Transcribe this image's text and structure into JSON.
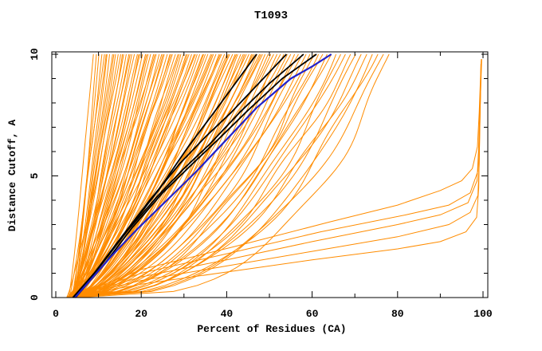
{
  "window": {
    "title": "T1093"
  },
  "chart_data": {
    "type": "line",
    "title": "T1093",
    "xlabel": "Percent of Residues (CA)",
    "ylabel": "Distance Cutoff, A",
    "xlim": [
      0,
      100
    ],
    "ylim": [
      0,
      10
    ],
    "x_major_ticks": [
      0,
      20,
      40,
      60,
      80,
      100
    ],
    "x_minor_step": 10,
    "y_major_ticks": [
      0,
      5,
      10
    ],
    "y_minor_step": 1,
    "grid": false,
    "legend": null,
    "colors": {
      "models": "#ff8c00",
      "highlighted": "#000000",
      "reference": "#2222cc",
      "axis": "#000000",
      "background": "#ffffff"
    },
    "series": {
      "reference_model_blue": {
        "color": "reference",
        "width": 2.2,
        "points": [
          [
            4.5,
            0
          ],
          [
            8,
            0.7
          ],
          [
            13,
            1.7
          ],
          [
            19,
            2.8
          ],
          [
            26,
            4.0
          ],
          [
            33,
            5.2
          ],
          [
            40,
            6.5
          ],
          [
            47,
            7.8
          ],
          [
            55,
            9.0
          ],
          [
            60,
            9.5
          ],
          [
            64.5,
            10
          ]
        ]
      },
      "highlighted_models_black": [
        {
          "width": 1.8,
          "points": [
            [
              4.0,
              0
            ],
            [
              9,
              1.0
            ],
            [
              16,
              2.6
            ],
            [
              24,
              4.4
            ],
            [
              31,
              6.2
            ],
            [
              37,
              7.6
            ],
            [
              42,
              8.8
            ],
            [
              47,
              10
            ]
          ]
        },
        {
          "width": 1.8,
          "points": [
            [
              4.2,
              0
            ],
            [
              9,
              1.0
            ],
            [
              15,
              2.4
            ],
            [
              22,
              4.0
            ],
            [
              29,
              5.5
            ],
            [
              35,
              6.6
            ],
            [
              41,
              7.6
            ],
            [
              48,
              8.9
            ],
            [
              54,
              10
            ]
          ]
        },
        {
          "width": 1.8,
          "points": [
            [
              4.4,
              0
            ],
            [
              10,
              1.2
            ],
            [
              17,
              2.8
            ],
            [
              24,
              4.2
            ],
            [
              30,
              5.3
            ],
            [
              36,
              6.3
            ],
            [
              43,
              7.6
            ],
            [
              50,
              8.8
            ],
            [
              58,
              10
            ]
          ]
        },
        {
          "width": 1.8,
          "points": [
            [
              4.6,
              0
            ],
            [
              11,
              1.3
            ],
            [
              18,
              2.9
            ],
            [
              25,
              4.3
            ],
            [
              32,
              5.5
            ],
            [
              38,
              6.5
            ],
            [
              45,
              7.7
            ],
            [
              53,
              9.0
            ],
            [
              61,
              10
            ]
          ]
        }
      ],
      "outlier_models_orange": [
        {
          "points": [
            [
              3.0,
              0
            ],
            [
              20,
              0.55
            ],
            [
              40,
              1.05
            ],
            [
              60,
              1.55
            ],
            [
              80,
              2.0
            ],
            [
              90,
              2.3
            ],
            [
              96,
              2.7
            ],
            [
              98.5,
              3.3
            ],
            [
              99.0,
              4.5
            ],
            [
              99.2,
              6.5
            ],
            [
              99.4,
              8.2
            ],
            [
              99.6,
              9.7
            ]
          ]
        },
        {
          "points": [
            [
              3.2,
              0
            ],
            [
              20,
              0.7
            ],
            [
              40,
              1.3
            ],
            [
              60,
              1.9
            ],
            [
              80,
              2.5
            ],
            [
              92,
              3.0
            ],
            [
              97,
              3.5
            ],
            [
              98.8,
              4.2
            ],
            [
              99.1,
              5.5
            ],
            [
              99.3,
              7.5
            ],
            [
              99.5,
              9.6
            ]
          ]
        },
        {
          "points": [
            [
              3.4,
              0
            ],
            [
              20,
              0.85
            ],
            [
              40,
              1.55
            ],
            [
              60,
              2.3
            ],
            [
              80,
              3.0
            ],
            [
              90,
              3.4
            ],
            [
              96.5,
              3.9
            ],
            [
              98.6,
              4.8
            ],
            [
              99.0,
              6.2
            ],
            [
              99.3,
              8.0
            ],
            [
              99.6,
              9.75
            ]
          ]
        },
        {
          "points": [
            [
              3.6,
              0
            ],
            [
              20,
              1.0
            ],
            [
              40,
              1.8
            ],
            [
              62,
              2.7
            ],
            [
              82,
              3.4
            ],
            [
              92,
              3.8
            ],
            [
              97,
              4.3
            ],
            [
              98.8,
              5.2
            ],
            [
              99.2,
              7.0
            ],
            [
              99.5,
              8.8
            ],
            [
              99.7,
              9.8
            ]
          ]
        },
        {
          "points": [
            [
              3.8,
              0
            ],
            [
              20,
              1.15
            ],
            [
              42,
              2.1
            ],
            [
              64,
              3.1
            ],
            [
              80,
              3.8
            ],
            [
              90,
              4.4
            ],
            [
              95,
              4.8
            ],
            [
              97.5,
              5.3
            ],
            [
              98.7,
              6.2
            ],
            [
              99.1,
              7.6
            ],
            [
              99.4,
              9.0
            ],
            [
              99.6,
              9.8
            ]
          ]
        }
      ],
      "model_curves_orange": {
        "start_percent_range": [
          2.5,
          5.2
        ],
        "shape": "x(t) = start + (top-start)*t^k, t = cutoff/10, k = 0.97 - 0.008*top (clamped 0.32..1.0), small sinusoidal wiggle",
        "top_percents": [
          8.8,
          9.5,
          10.1,
          10.8,
          11.4,
          12.0,
          12.6,
          13.3,
          14.0,
          14.6,
          15.2,
          15.9,
          16.5,
          17.1,
          17.8,
          18.4,
          19.1,
          19.7,
          20.3,
          21.0,
          21.6,
          22.2,
          22.9,
          23.5,
          24.2,
          24.8,
          25.4,
          26.1,
          26.7,
          27.3,
          28.0,
          28.6,
          29.3,
          29.9,
          30.5,
          31.2,
          31.8,
          32.4,
          33.1,
          33.7,
          34.4,
          35.0,
          35.6,
          36.3,
          36.9,
          37.5,
          38.2,
          38.8,
          39.5,
          40.1,
          40.7,
          41.4,
          42.0,
          42.6,
          43.3,
          43.9,
          44.6,
          45.2,
          45.8,
          46.5,
          47.1,
          47.7,
          48.4,
          49.0,
          49.7,
          50.3,
          51.0,
          51.8,
          52.6,
          53.4,
          54.2,
          55.0,
          55.9,
          56.8,
          57.7,
          58.6,
          59.5,
          60.5,
          61.5,
          62.5,
          63.5,
          64.5,
          65.6,
          66.7,
          67.8,
          69.0,
          70.2,
          71.5,
          72.8,
          74.1,
          75.4,
          76.7,
          78.0,
          11.8,
          13.6,
          15.6,
          17.4,
          19.4,
          21.3,
          23.2,
          25.1,
          27.0,
          28.9,
          30.8,
          32.7,
          34.6,
          36.6,
          38.5,
          40.4,
          42.3,
          44.2,
          46.1,
          48.0
        ]
      }
    }
  }
}
